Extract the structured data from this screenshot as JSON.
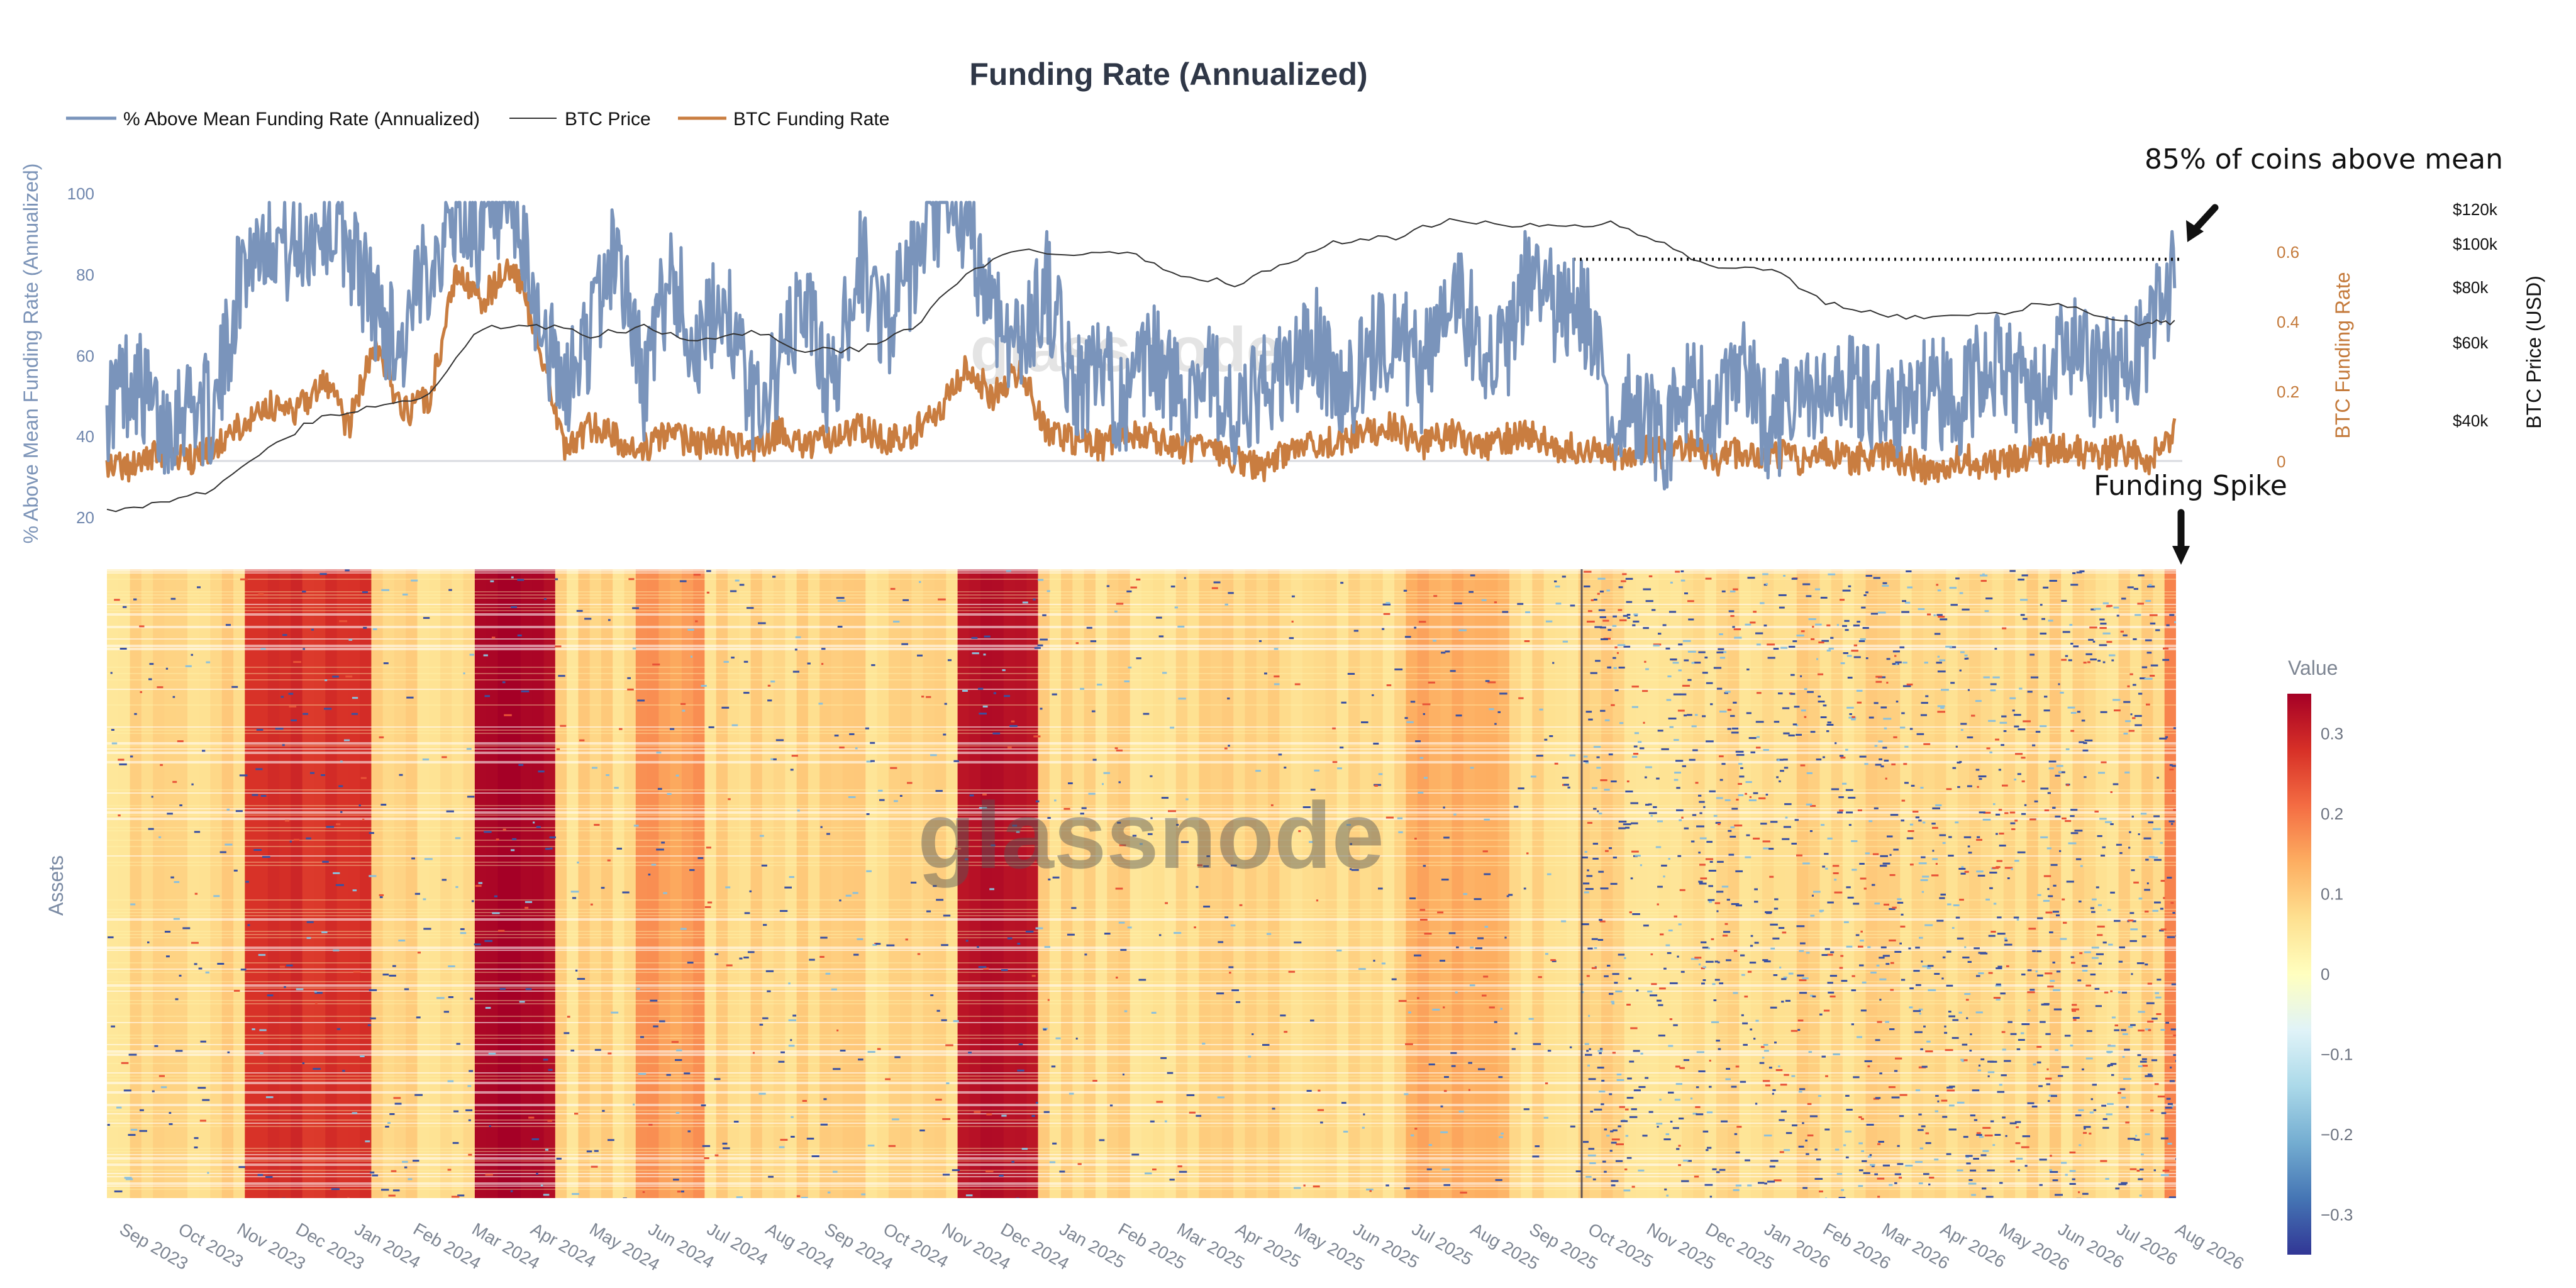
{
  "chart_data": [
    {
      "type": "line",
      "title": "Funding Rate (Annualized)",
      "legend": {
        "placement": "top-left",
        "entries": [
          {
            "label": "% Above Mean Funding Rate (Annualized)",
            "color": "#7a94bb"
          },
          {
            "label": "BTC Price",
            "color": "#333333"
          },
          {
            "label": "BTC Funding Rate",
            "color": "#c97d40"
          }
        ]
      },
      "x_range": [
        "2023-08-22",
        "2026-08-08"
      ],
      "x_tick_labels": [
        "Sep 2023",
        "Oct 2023",
        "Nov 2023",
        "Dec 2023",
        "Jan 2024",
        "Feb 2024",
        "Mar 2024",
        "Apr 2024",
        "May 2024",
        "Jun 2024",
        "Jul 2024",
        "Aug 2024",
        "Sep 2024",
        "Oct 2024",
        "Nov 2024",
        "Dec 2024",
        "Jan 2025",
        "Feb 2025",
        "Mar 2025",
        "Apr 2025",
        "May 2025",
        "Jun 2025",
        "Jul 2025",
        "Aug 2025",
        "Sep 2025",
        "Oct 2025",
        "Nov 2025",
        "Dec 2025",
        "Jan 2026",
        "Feb 2026",
        "Mar 2026",
        "Apr 2026",
        "May 2026",
        "Jun 2026",
        "Jul 2026",
        "Aug 2026"
      ],
      "axes": {
        "y_left": {
          "label": "% Above Mean Funding Rate (Annualized)",
          "ticks": [
            "100",
            "80",
            "60",
            "40",
            "20"
          ],
          "range": [
            14,
            104
          ]
        },
        "y_funding": {
          "label": "BTC Funding Rate",
          "ticks": [
            "0.6",
            "0.4",
            "0.2",
            "0"
          ],
          "range": [
            -0.14,
            0.78
          ]
        },
        "y_price": {
          "label": "BTC Price (USD)",
          "ticks": [
            "$120k",
            "$100k",
            "$80k",
            "$60k",
            "$40k"
          ],
          "log_scale": true,
          "range": [
            24000,
            130000
          ]
        }
      },
      "grid": false,
      "series": [
        {
          "name": "% Above Mean Funding Rate (Annualized)",
          "x": [
            "2023-08-22",
            "2023-09-05",
            "2023-09-19",
            "2023-10-03",
            "2023-10-17",
            "2023-10-31",
            "2023-11-14",
            "2023-11-28",
            "2023-12-12",
            "2023-12-26",
            "2024-01-09",
            "2024-01-23",
            "2024-02-06",
            "2024-02-20",
            "2024-03-05",
            "2024-03-19",
            "2024-04-02",
            "2024-04-16",
            "2024-04-30",
            "2024-05-14",
            "2024-05-28",
            "2024-06-11",
            "2024-06-25",
            "2024-07-09",
            "2024-07-23",
            "2024-08-06",
            "2024-08-20",
            "2024-09-03",
            "2024-09-17",
            "2024-10-01",
            "2024-10-15",
            "2024-10-29",
            "2024-11-12",
            "2024-11-26",
            "2024-12-10",
            "2024-12-24",
            "2025-01-07",
            "2025-01-21",
            "2025-02-04",
            "2025-02-18",
            "2025-03-04",
            "2025-03-18",
            "2025-04-01",
            "2025-04-15",
            "2025-04-29",
            "2025-05-13",
            "2025-05-27",
            "2025-06-10",
            "2025-06-24",
            "2025-07-08",
            "2025-07-22",
            "2025-08-05",
            "2025-08-19",
            "2025-09-02",
            "2025-09-16",
            "2025-09-30",
            "2025-10-14",
            "2025-10-28",
            "2025-11-11",
            "2025-11-25",
            "2025-12-09",
            "2025-12-23",
            "2026-01-06",
            "2026-01-20",
            "2026-02-03",
            "2026-02-17",
            "2026-03-03",
            "2026-03-17",
            "2026-03-31",
            "2026-04-14",
            "2026-04-28",
            "2026-05-12",
            "2026-05-26",
            "2026-06-09",
            "2026-06-23",
            "2026-07-07",
            "2026-07-21",
            "2026-08-04"
          ],
          "values": [
            48,
            56,
            42,
            50,
            45,
            82,
            92,
            85,
            94,
            88,
            72,
            62,
            84,
            95,
            90,
            96,
            72,
            50,
            66,
            88,
            52,
            82,
            60,
            76,
            48,
            56,
            74,
            50,
            85,
            68,
            80,
            95,
            92,
            72,
            62,
            78,
            52,
            56,
            48,
            60,
            50,
            58,
            42,
            52,
            56,
            64,
            50,
            60,
            68,
            54,
            80,
            66,
            58,
            82,
            70,
            72,
            44,
            48,
            40,
            52,
            46,
            56,
            42,
            50,
            48,
            54,
            50,
            46,
            52,
            48,
            60,
            54,
            50,
            62,
            56,
            58,
            64,
            82
          ],
          "color": "#7a94bb"
        },
        {
          "name": "BTC Price",
          "x": [
            "2023-08-22",
            "2023-09-19",
            "2023-10-17",
            "2023-11-14",
            "2023-12-12",
            "2024-01-09",
            "2024-02-06",
            "2024-03-05",
            "2024-04-02",
            "2024-04-30",
            "2024-05-28",
            "2024-06-25",
            "2024-07-23",
            "2024-08-20",
            "2024-09-17",
            "2024-10-15",
            "2024-11-12",
            "2024-12-10",
            "2025-01-07",
            "2025-02-04",
            "2025-03-04",
            "2025-04-01",
            "2025-04-29",
            "2025-05-27",
            "2025-06-24",
            "2025-07-22",
            "2025-08-19",
            "2025-09-16",
            "2025-10-14",
            "2025-11-11",
            "2025-12-09",
            "2026-01-06",
            "2026-02-03",
            "2026-03-03",
            "2026-03-31",
            "2026-04-28",
            "2026-05-26",
            "2026-06-23",
            "2026-07-21",
            "2026-08-04"
          ],
          "values": [
            26000,
            27000,
            28500,
            36000,
            42000,
            44000,
            47000,
            67000,
            68000,
            64000,
            67000,
            62000,
            66000,
            59000,
            60000,
            66000,
            88000,
            100000,
            97000,
            98000,
            88000,
            84000,
            94000,
            105000,
            107000,
            118000,
            115000,
            112000,
            115000,
            103000,
            90000,
            91000,
            76000,
            72000,
            70000,
            71000,
            76000,
            72000,
            68000,
            69000
          ],
          "color": "#333333"
        },
        {
          "name": "BTC Funding Rate",
          "x": [
            "2023-08-22",
            "2023-09-05",
            "2023-09-19",
            "2023-10-03",
            "2023-10-17",
            "2023-10-31",
            "2023-11-14",
            "2023-11-28",
            "2023-12-12",
            "2023-12-26",
            "2024-01-09",
            "2024-01-23",
            "2024-02-06",
            "2024-02-20",
            "2024-03-05",
            "2024-03-19",
            "2024-04-02",
            "2024-04-16",
            "2024-04-30",
            "2024-05-14",
            "2024-05-28",
            "2024-06-11",
            "2024-06-25",
            "2024-07-09",
            "2024-07-23",
            "2024-08-06",
            "2024-08-20",
            "2024-09-03",
            "2024-09-17",
            "2024-10-01",
            "2024-10-15",
            "2024-10-29",
            "2024-11-12",
            "2024-11-26",
            "2024-12-10",
            "2024-12-24",
            "2025-01-07",
            "2025-01-21",
            "2025-02-04",
            "2025-02-18",
            "2025-03-04",
            "2025-03-18",
            "2025-04-01",
            "2025-04-15",
            "2025-04-29",
            "2025-05-13",
            "2025-05-27",
            "2025-06-10",
            "2025-06-24",
            "2025-07-08",
            "2025-07-22",
            "2025-08-05",
            "2025-08-19",
            "2025-09-02",
            "2025-09-16",
            "2025-09-30",
            "2025-10-14",
            "2025-10-28",
            "2025-11-11",
            "2025-11-25",
            "2025-12-09",
            "2025-12-23",
            "2026-01-06",
            "2026-01-20",
            "2026-02-03",
            "2026-02-17",
            "2026-03-03",
            "2026-03-17",
            "2026-03-31",
            "2026-04-14",
            "2026-04-28",
            "2026-05-12",
            "2026-05-26",
            "2026-06-09",
            "2026-06-23",
            "2026-07-07",
            "2026-07-21",
            "2026-08-04"
          ],
          "values": [
            0.02,
            0.0,
            0.04,
            0.02,
            0.05,
            0.12,
            0.18,
            0.15,
            0.25,
            0.12,
            0.35,
            0.15,
            0.2,
            0.55,
            0.48,
            0.58,
            0.4,
            0.05,
            0.12,
            0.08,
            0.05,
            0.1,
            0.06,
            0.08,
            0.05,
            0.1,
            0.06,
            0.08,
            0.12,
            0.08,
            0.1,
            0.15,
            0.3,
            0.2,
            0.28,
            0.1,
            0.08,
            0.06,
            0.1,
            0.08,
            0.05,
            0.06,
            0.02,
            0.0,
            0.04,
            0.06,
            0.08,
            0.1,
            0.12,
            0.06,
            0.1,
            0.05,
            0.08,
            0.1,
            0.06,
            0.05,
            0.03,
            0.05,
            0.04,
            0.06,
            0.02,
            0.05,
            0.04,
            0.02,
            0.05,
            0.02,
            0.04,
            0.02,
            -0.02,
            0.03,
            0.0,
            0.02,
            0.04,
            0.06,
            0.03,
            0.05,
            0.02,
            0.1
          ],
          "color": "#c97d40"
        }
      ],
      "reference_line": {
        "y_percent": 84
      },
      "annotations": [
        "85% of coins above mean"
      ]
    },
    {
      "type": "heatmap",
      "ylabel": "Assets",
      "colorbar": {
        "title": "Value",
        "ticks": [
          "0.3",
          "0.2",
          "0.1",
          "0",
          "−0.1",
          "−0.2",
          "−0.3"
        ],
        "range": [
          -0.35,
          0.35
        ],
        "colorscale": [
          "#313695",
          "#4575b4",
          "#74add1",
          "#abd9e9",
          "#e0f3f8",
          "#ffffbf",
          "#fee090",
          "#fdae61",
          "#f46d43",
          "#d73027",
          "#a50026"
        ]
      },
      "high_value_periods": [
        {
          "start": "2023-11-01",
          "end": "2024-01-05",
          "level": 0.28
        },
        {
          "start": "2024-02-25",
          "end": "2024-04-12",
          "level": 0.34
        },
        {
          "start": "2024-05-20",
          "end": "2024-06-25",
          "level": 0.16
        },
        {
          "start": "2024-11-05",
          "end": "2024-12-15",
          "level": 0.33
        },
        {
          "start": "2025-07-01",
          "end": "2025-08-20",
          "level": 0.14
        },
        {
          "start": "2026-07-28",
          "end": "2026-08-08",
          "level": 0.18
        }
      ],
      "annotations": [
        "Funding Spike"
      ]
    }
  ],
  "watermark": "glassnode"
}
